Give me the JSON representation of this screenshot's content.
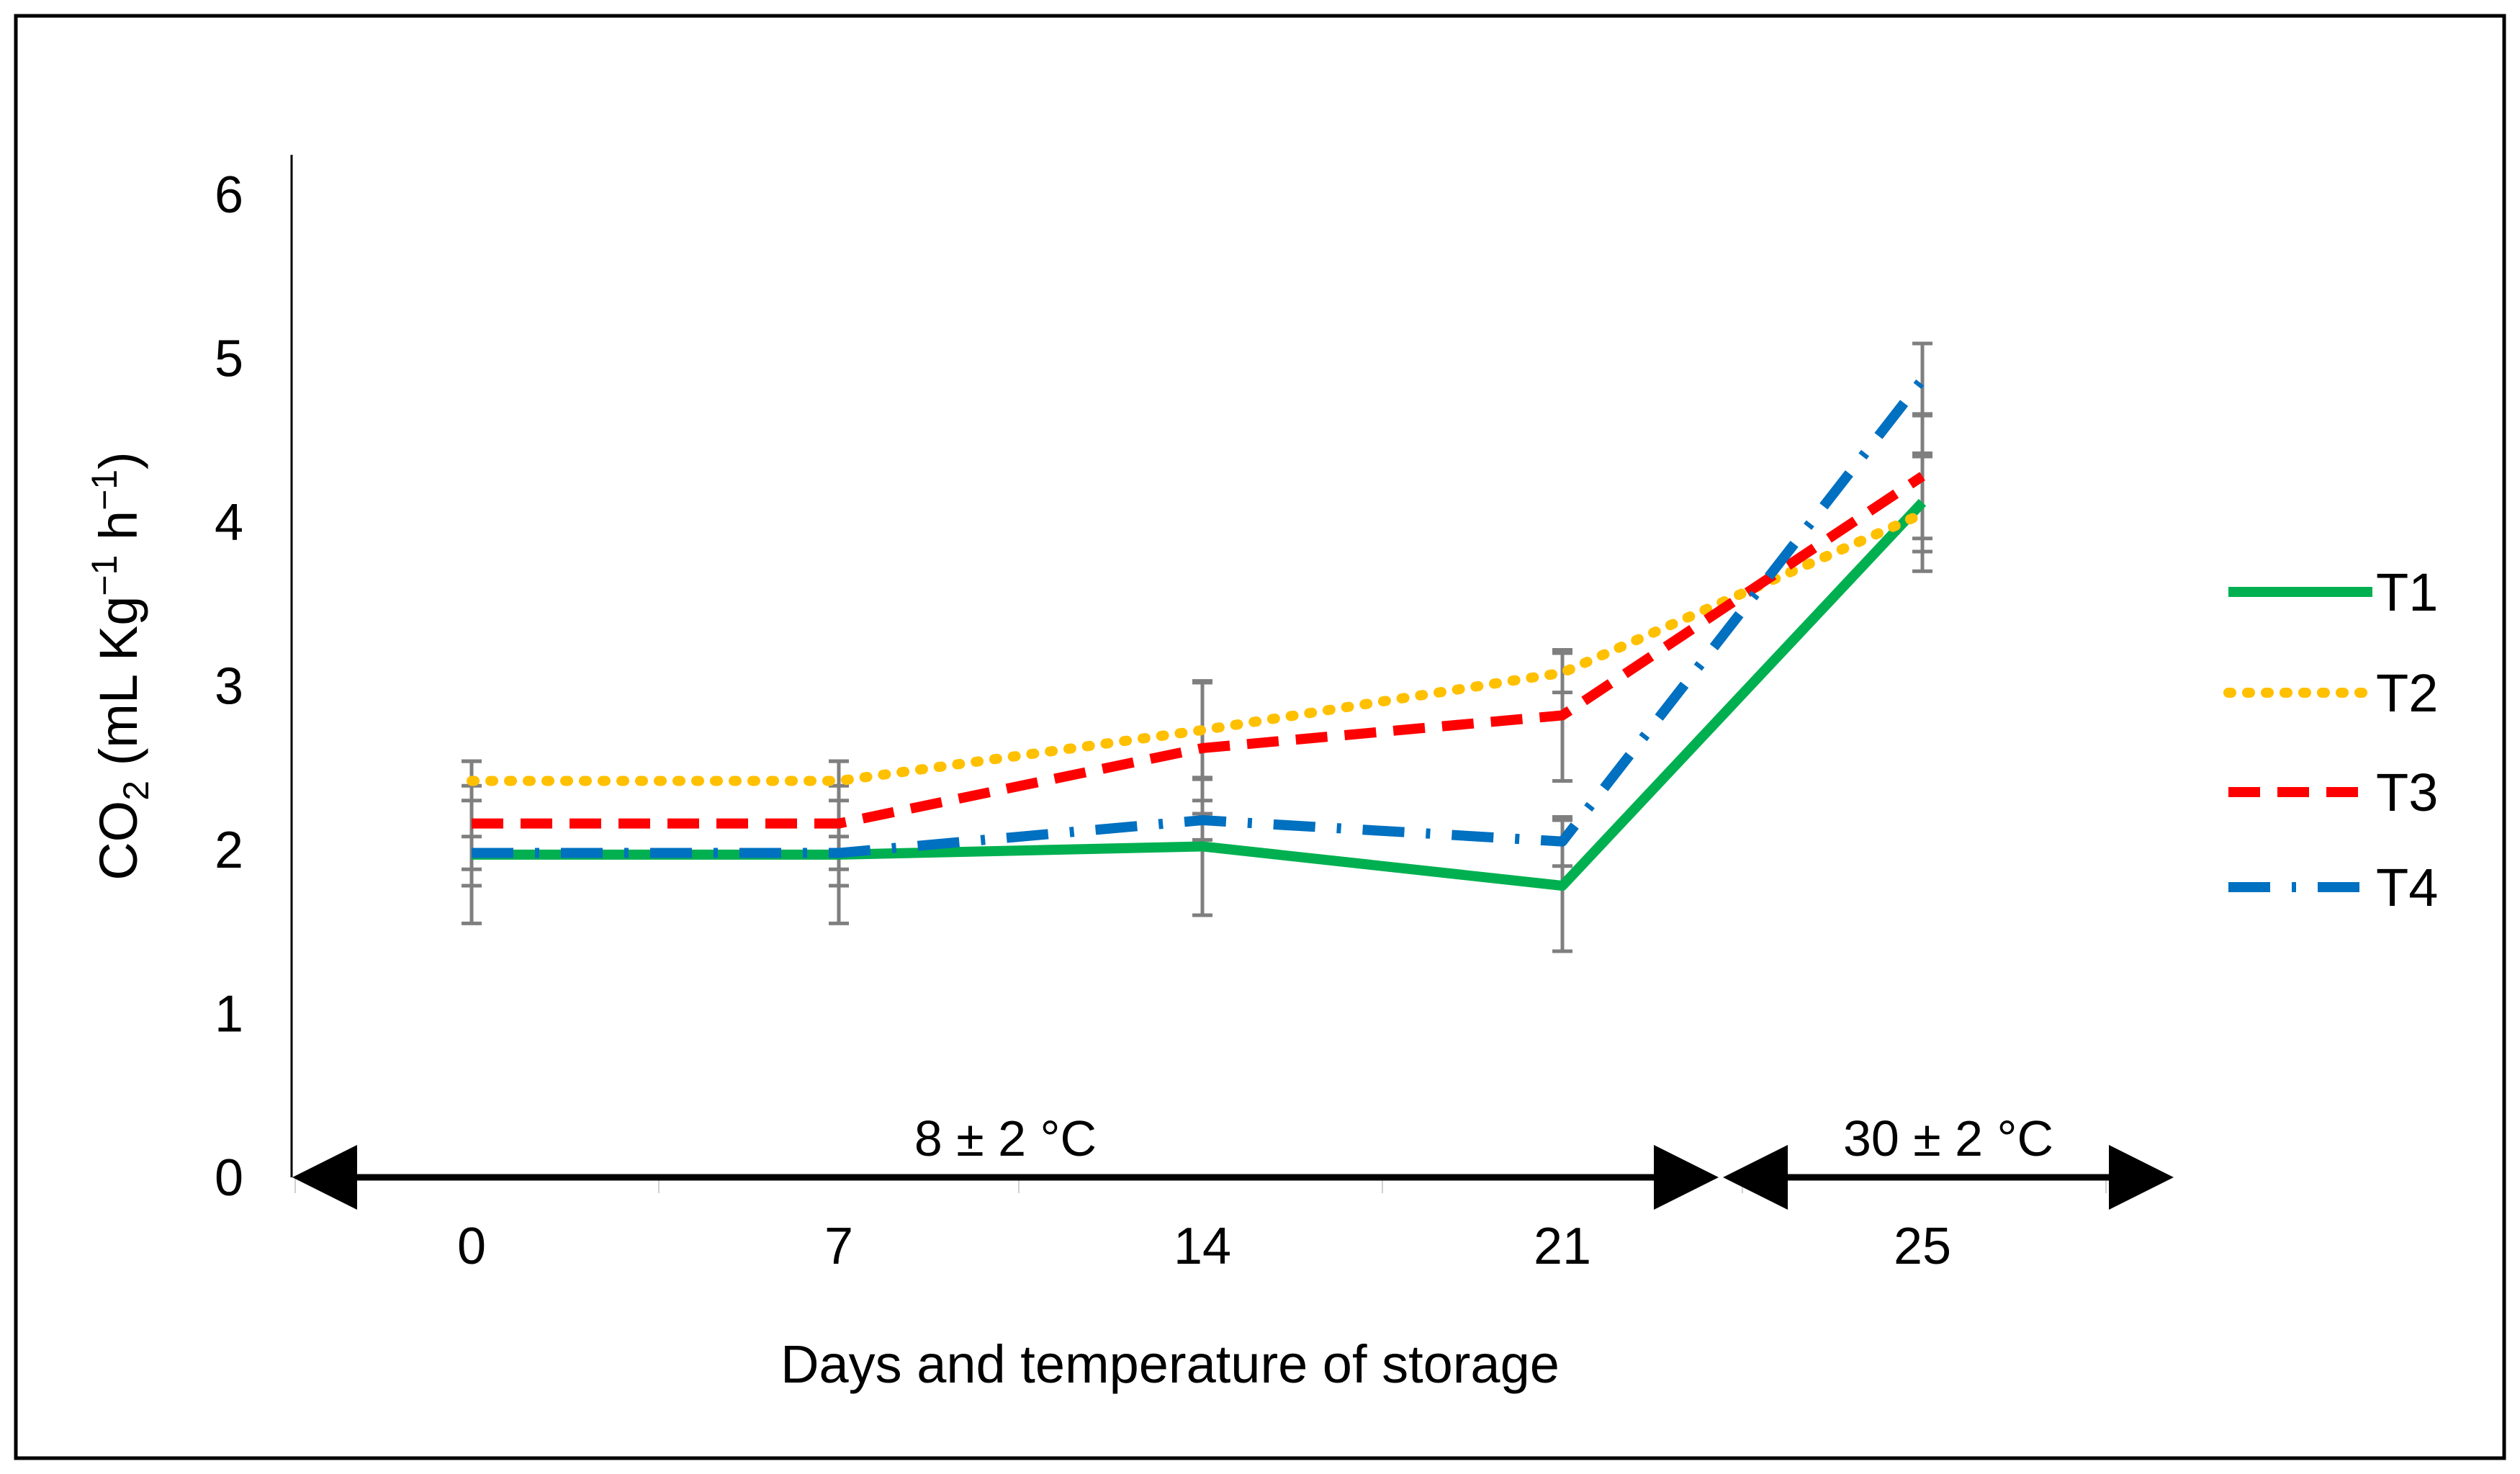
{
  "chart_data": {
    "type": "line",
    "title": "",
    "xlabel": "Days and temperature of storage",
    "ylabel": {
      "main": "CO",
      "sub": "2",
      "units_open": " (mL Kg",
      "sup1": "−1",
      "units_mid": " h",
      "sup2": "−1",
      "units_close": ")"
    },
    "categories": [
      "0",
      "7",
      "14",
      "21",
      "25"
    ],
    "ylim": [
      0,
      6
    ],
    "yticks": [
      "0",
      "1",
      "2",
      "3",
      "4",
      "5",
      "6"
    ],
    "grid": false,
    "legend_position": "right",
    "series": [
      {
        "name": "T1",
        "color": "#00B050",
        "style": "solid",
        "values": [
          1.97,
          1.97,
          2.02,
          1.78,
          4.12
        ],
        "error_low": [
          0.42,
          0.42,
          0.42,
          0.4,
          0.3
        ],
        "error_high": [
          0.42,
          0.42,
          0.42,
          0.4,
          0.3
        ]
      },
      {
        "name": "T2",
        "color": "#FFC000",
        "style": "dotted",
        "values": [
          2.42,
          2.42,
          2.73,
          3.08,
          4.05
        ],
        "error_low": [
          0.12,
          0.12,
          0.3,
          0.12,
          0.35
        ],
        "error_high": [
          0.12,
          0.12,
          0.3,
          0.12,
          0.35
        ]
      },
      {
        "name": "T3",
        "color": "#FF0000",
        "style": "dashed",
        "values": [
          2.16,
          2.16,
          2.62,
          2.82,
          4.28
        ],
        "error_low": [
          0.38,
          0.38,
          0.4,
          0.4,
          0.38
        ],
        "error_high": [
          0.38,
          0.38,
          0.4,
          0.4,
          0.38
        ]
      },
      {
        "name": "T4",
        "color": "#0070C0",
        "style": "dashdot",
        "values": [
          1.98,
          1.98,
          2.18,
          2.05,
          4.87
        ],
        "error_low": [
          0.1,
          0.1,
          0.12,
          0.15,
          0.22
        ],
        "error_high": [
          0.1,
          0.1,
          0.12,
          0.15,
          0.22
        ]
      }
    ],
    "annotations": [
      {
        "text": "8 ± 2 °C",
        "from": "0",
        "to": "21"
      },
      {
        "text": "30 ± 2 °C",
        "from": "21",
        "to": "25"
      }
    ]
  }
}
